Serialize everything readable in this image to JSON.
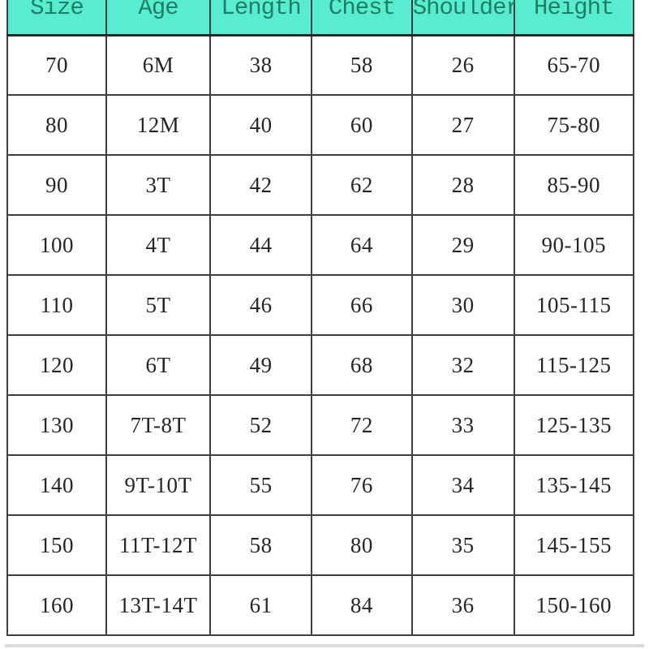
{
  "style": {
    "header_bg": "#58edd1",
    "header_text": "#1f7f66",
    "grid_color": "#3f3f3f",
    "body_text": "#262626",
    "page_bg": "#ffffff",
    "bottom_strip": "#d9dedd"
  },
  "chart_data": {
    "type": "table",
    "columns": [
      "Size",
      "Age",
      "Length",
      "Chest",
      "Shoulder",
      "Height"
    ],
    "rows": [
      [
        "70",
        "6M",
        "38",
        "58",
        "26",
        "65-70"
      ],
      [
        "80",
        "12M",
        "40",
        "60",
        "27",
        "75-80"
      ],
      [
        "90",
        "3T",
        "42",
        "62",
        "28",
        "85-90"
      ],
      [
        "100",
        "4T",
        "44",
        "64",
        "29",
        "90-105"
      ],
      [
        "110",
        "5T",
        "46",
        "66",
        "30",
        "105-115"
      ],
      [
        "120",
        "6T",
        "49",
        "68",
        "32",
        "115-125"
      ],
      [
        "130",
        "7T-8T",
        "52",
        "72",
        "33",
        "125-135"
      ],
      [
        "140",
        "9T-10T",
        "55",
        "76",
        "34",
        "135-145"
      ],
      [
        "150",
        "11T-12T",
        "58",
        "80",
        "35",
        "145-155"
      ],
      [
        "160",
        "13T-14T",
        "61",
        "84",
        "36",
        "150-160"
      ]
    ],
    "layout_hints": {
      "header_row_clipped_at_top": true,
      "grid": "on",
      "legend": "none"
    }
  }
}
